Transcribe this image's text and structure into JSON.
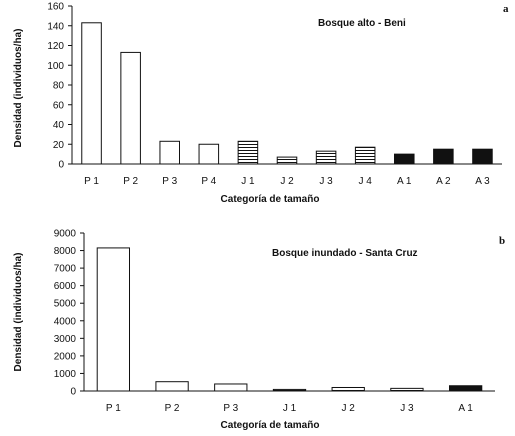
{
  "chart_data": [
    {
      "type": "bar",
      "panel_label": "a",
      "title": "Bosque alto - Beni",
      "xlabel": "Categoría de tamaño",
      "ylabel": "Densidad (individuos/ha)",
      "ylim": [
        0,
        160
      ],
      "yticks": [
        0,
        20,
        40,
        60,
        80,
        100,
        120,
        140,
        160
      ],
      "categories": [
        "P 1",
        "P 2",
        "P 3",
        "P 4",
        "J 1",
        "J 2",
        "J 3",
        "J 4",
        "A 1",
        "A 2",
        "A 3"
      ],
      "values": [
        143,
        113,
        23,
        20,
        23,
        7,
        13,
        17,
        10,
        15,
        15
      ],
      "fills": [
        "white",
        "white",
        "white",
        "white",
        "hatch",
        "hatch",
        "hatch",
        "hatch",
        "black",
        "black",
        "black"
      ],
      "grid": false
    },
    {
      "type": "bar",
      "panel_label": "b",
      "title": "Bosque inundado - Santa Cruz",
      "xlabel": "Categoría de tamaño",
      "ylabel": "Densidad (individuos/ha)",
      "ylim": [
        0,
        9000
      ],
      "yticks": [
        0,
        1000,
        2000,
        3000,
        4000,
        5000,
        6000,
        7000,
        8000,
        9000
      ],
      "categories": [
        "P 1",
        "P 2",
        "P 3",
        "J 1",
        "J 2",
        "J 3",
        "A 1"
      ],
      "values": [
        8150,
        530,
        400,
        90,
        200,
        150,
        300
      ],
      "fills": [
        "white",
        "white",
        "white",
        "hatch",
        "hatch",
        "hatch",
        "black"
      ],
      "grid": false
    }
  ],
  "colors": {
    "ink": "#111111",
    "background": "#ffffff"
  }
}
